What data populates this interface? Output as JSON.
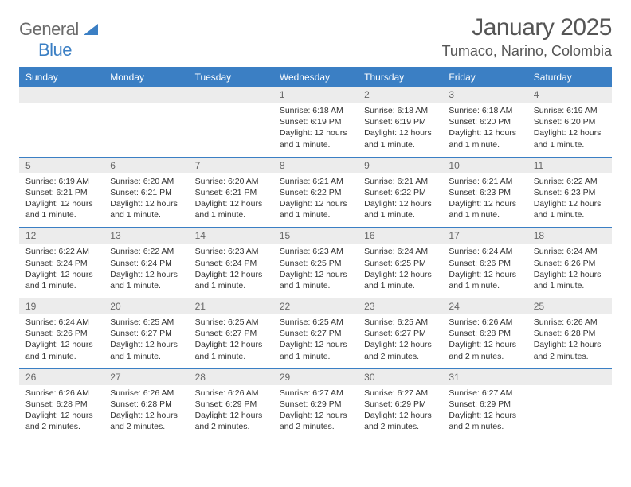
{
  "logo": {
    "text1": "General",
    "text2": "Blue",
    "color1": "#6b6b6b",
    "color2": "#3b7fc4"
  },
  "title": "January 2025",
  "location": "Tumaco, Narino, Colombia",
  "colors": {
    "header_band": "#3b7fc4",
    "header_text": "#ffffff",
    "daynum_band": "#ececec",
    "daynum_text": "#666666",
    "body_text": "#333333",
    "rule": "#3b7fc4",
    "background": "#ffffff"
  },
  "fonts": {
    "title_pt": 30,
    "location_pt": 18,
    "dow_pt": 12,
    "daynum_pt": 12,
    "body_pt": 10.5
  },
  "days_of_week": [
    "Sunday",
    "Monday",
    "Tuesday",
    "Wednesday",
    "Thursday",
    "Friday",
    "Saturday"
  ],
  "weeks": [
    [
      {
        "n": "",
        "sunrise": "",
        "sunset": "",
        "daylight": ""
      },
      {
        "n": "",
        "sunrise": "",
        "sunset": "",
        "daylight": ""
      },
      {
        "n": "",
        "sunrise": "",
        "sunset": "",
        "daylight": ""
      },
      {
        "n": "1",
        "sunrise": "6:18 AM",
        "sunset": "6:19 PM",
        "daylight": "12 hours and 1 minute."
      },
      {
        "n": "2",
        "sunrise": "6:18 AM",
        "sunset": "6:19 PM",
        "daylight": "12 hours and 1 minute."
      },
      {
        "n": "3",
        "sunrise": "6:18 AM",
        "sunset": "6:20 PM",
        "daylight": "12 hours and 1 minute."
      },
      {
        "n": "4",
        "sunrise": "6:19 AM",
        "sunset": "6:20 PM",
        "daylight": "12 hours and 1 minute."
      }
    ],
    [
      {
        "n": "5",
        "sunrise": "6:19 AM",
        "sunset": "6:21 PM",
        "daylight": "12 hours and 1 minute."
      },
      {
        "n": "6",
        "sunrise": "6:20 AM",
        "sunset": "6:21 PM",
        "daylight": "12 hours and 1 minute."
      },
      {
        "n": "7",
        "sunrise": "6:20 AM",
        "sunset": "6:21 PM",
        "daylight": "12 hours and 1 minute."
      },
      {
        "n": "8",
        "sunrise": "6:21 AM",
        "sunset": "6:22 PM",
        "daylight": "12 hours and 1 minute."
      },
      {
        "n": "9",
        "sunrise": "6:21 AM",
        "sunset": "6:22 PM",
        "daylight": "12 hours and 1 minute."
      },
      {
        "n": "10",
        "sunrise": "6:21 AM",
        "sunset": "6:23 PM",
        "daylight": "12 hours and 1 minute."
      },
      {
        "n": "11",
        "sunrise": "6:22 AM",
        "sunset": "6:23 PM",
        "daylight": "12 hours and 1 minute."
      }
    ],
    [
      {
        "n": "12",
        "sunrise": "6:22 AM",
        "sunset": "6:24 PM",
        "daylight": "12 hours and 1 minute."
      },
      {
        "n": "13",
        "sunrise": "6:22 AM",
        "sunset": "6:24 PM",
        "daylight": "12 hours and 1 minute."
      },
      {
        "n": "14",
        "sunrise": "6:23 AM",
        "sunset": "6:24 PM",
        "daylight": "12 hours and 1 minute."
      },
      {
        "n": "15",
        "sunrise": "6:23 AM",
        "sunset": "6:25 PM",
        "daylight": "12 hours and 1 minute."
      },
      {
        "n": "16",
        "sunrise": "6:24 AM",
        "sunset": "6:25 PM",
        "daylight": "12 hours and 1 minute."
      },
      {
        "n": "17",
        "sunrise": "6:24 AM",
        "sunset": "6:26 PM",
        "daylight": "12 hours and 1 minute."
      },
      {
        "n": "18",
        "sunrise": "6:24 AM",
        "sunset": "6:26 PM",
        "daylight": "12 hours and 1 minute."
      }
    ],
    [
      {
        "n": "19",
        "sunrise": "6:24 AM",
        "sunset": "6:26 PM",
        "daylight": "12 hours and 1 minute."
      },
      {
        "n": "20",
        "sunrise": "6:25 AM",
        "sunset": "6:27 PM",
        "daylight": "12 hours and 1 minute."
      },
      {
        "n": "21",
        "sunrise": "6:25 AM",
        "sunset": "6:27 PM",
        "daylight": "12 hours and 1 minute."
      },
      {
        "n": "22",
        "sunrise": "6:25 AM",
        "sunset": "6:27 PM",
        "daylight": "12 hours and 1 minute."
      },
      {
        "n": "23",
        "sunrise": "6:25 AM",
        "sunset": "6:27 PM",
        "daylight": "12 hours and 2 minutes."
      },
      {
        "n": "24",
        "sunrise": "6:26 AM",
        "sunset": "6:28 PM",
        "daylight": "12 hours and 2 minutes."
      },
      {
        "n": "25",
        "sunrise": "6:26 AM",
        "sunset": "6:28 PM",
        "daylight": "12 hours and 2 minutes."
      }
    ],
    [
      {
        "n": "26",
        "sunrise": "6:26 AM",
        "sunset": "6:28 PM",
        "daylight": "12 hours and 2 minutes."
      },
      {
        "n": "27",
        "sunrise": "6:26 AM",
        "sunset": "6:28 PM",
        "daylight": "12 hours and 2 minutes."
      },
      {
        "n": "28",
        "sunrise": "6:26 AM",
        "sunset": "6:29 PM",
        "daylight": "12 hours and 2 minutes."
      },
      {
        "n": "29",
        "sunrise": "6:27 AM",
        "sunset": "6:29 PM",
        "daylight": "12 hours and 2 minutes."
      },
      {
        "n": "30",
        "sunrise": "6:27 AM",
        "sunset": "6:29 PM",
        "daylight": "12 hours and 2 minutes."
      },
      {
        "n": "31",
        "sunrise": "6:27 AM",
        "sunset": "6:29 PM",
        "daylight": "12 hours and 2 minutes."
      },
      {
        "n": "",
        "sunrise": "",
        "sunset": "",
        "daylight": ""
      }
    ]
  ],
  "labels": {
    "sunrise": "Sunrise:",
    "sunset": "Sunset:",
    "daylight": "Daylight:"
  }
}
